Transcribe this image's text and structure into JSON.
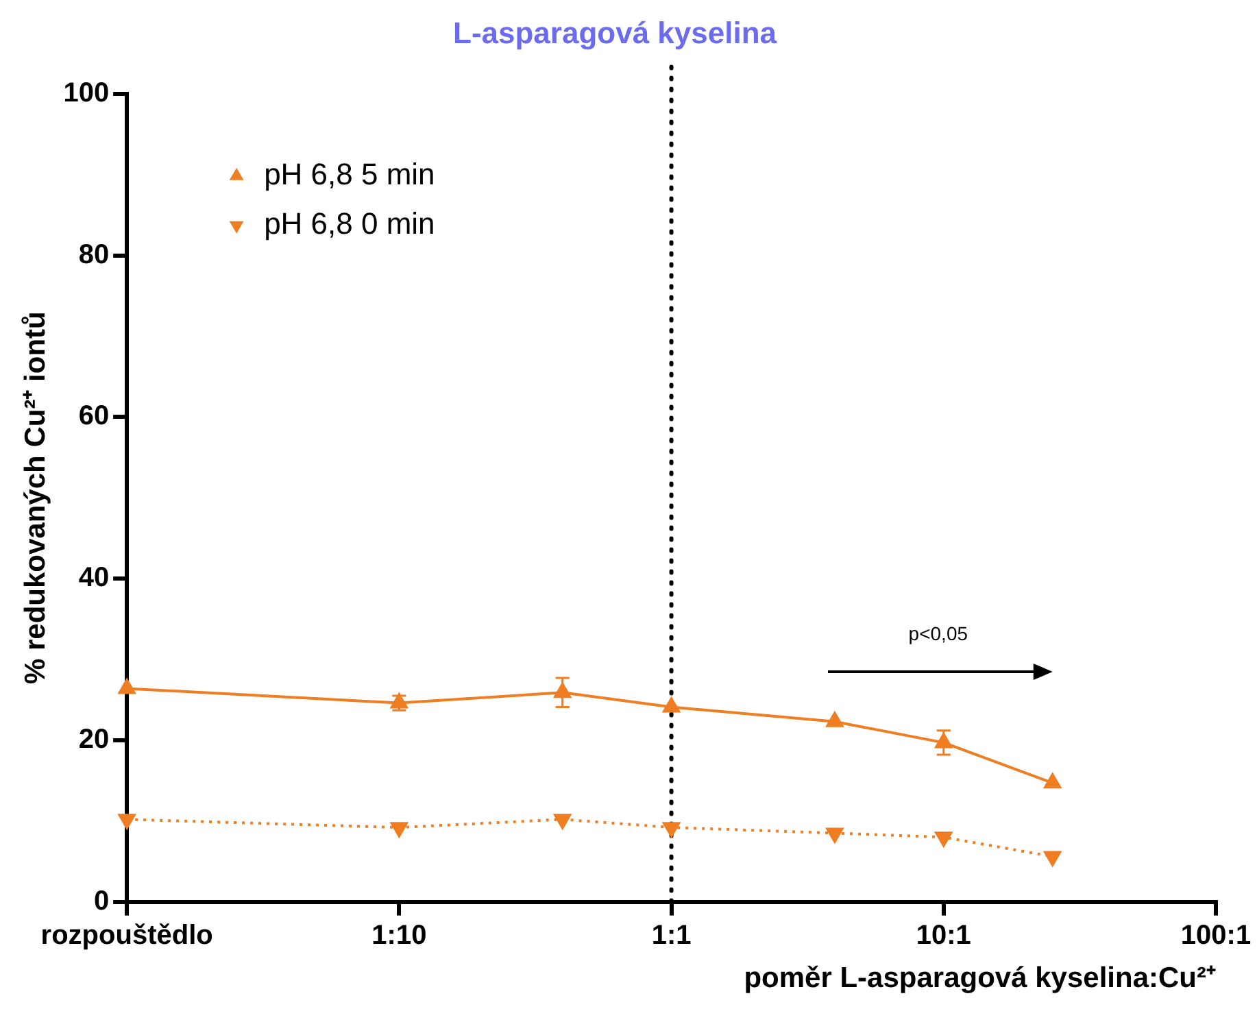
{
  "chart_data": {
    "type": "line",
    "title": "L-asparagová kyselina",
    "xlabel": "poměr L-asparagová kyselina:Cu²⁺",
    "ylabel": "% redukovaných Cu²⁺ iontů",
    "categories": [
      "rozpouštědlo",
      null,
      null,
      null,
      null,
      "1:10",
      null,
      null,
      null,
      null,
      "1:1",
      null,
      null,
      null,
      null,
      "10:1",
      null,
      null,
      null,
      null,
      "100:1"
    ],
    "ylim": [
      0,
      100
    ],
    "yticks": [
      0,
      20,
      40,
      60,
      80,
      100
    ],
    "grid": false,
    "legend": "top left",
    "series": [
      {
        "name": "pH 6,8 5 min",
        "color": "#ef7d22",
        "values": [
          26.4,
          null,
          null,
          null,
          null,
          24.6,
          null,
          null,
          25.9,
          null,
          24.1,
          null,
          null,
          22.3,
          null,
          19.7,
          null,
          14.7,
          null,
          null,
          null
        ],
        "errors": [
          null,
          null,
          null,
          null,
          null,
          0.9,
          null,
          null,
          1.8,
          null,
          null,
          null,
          null,
          null,
          null,
          1.5,
          null,
          null,
          null,
          null,
          null
        ],
        "marker": "triangle",
        "line_style": "solid"
      },
      {
        "name": "pH 6,8 0 min",
        "color": "#ef7d22",
        "values": [
          10.2,
          null,
          null,
          null,
          null,
          9.2,
          null,
          null,
          10.2,
          null,
          9.2,
          null,
          null,
          8.5,
          null,
          8.0,
          null,
          5.6,
          null,
          null,
          null
        ],
        "marker": "triangle-down",
        "line_style": "dotted"
      }
    ],
    "ref_lines": [
      {
        "axis": "x",
        "value": "1:1",
        "color": "#000000",
        "line_style": "dotted"
      }
    ],
    "annotations": [
      "p<0,05"
    ]
  }
}
